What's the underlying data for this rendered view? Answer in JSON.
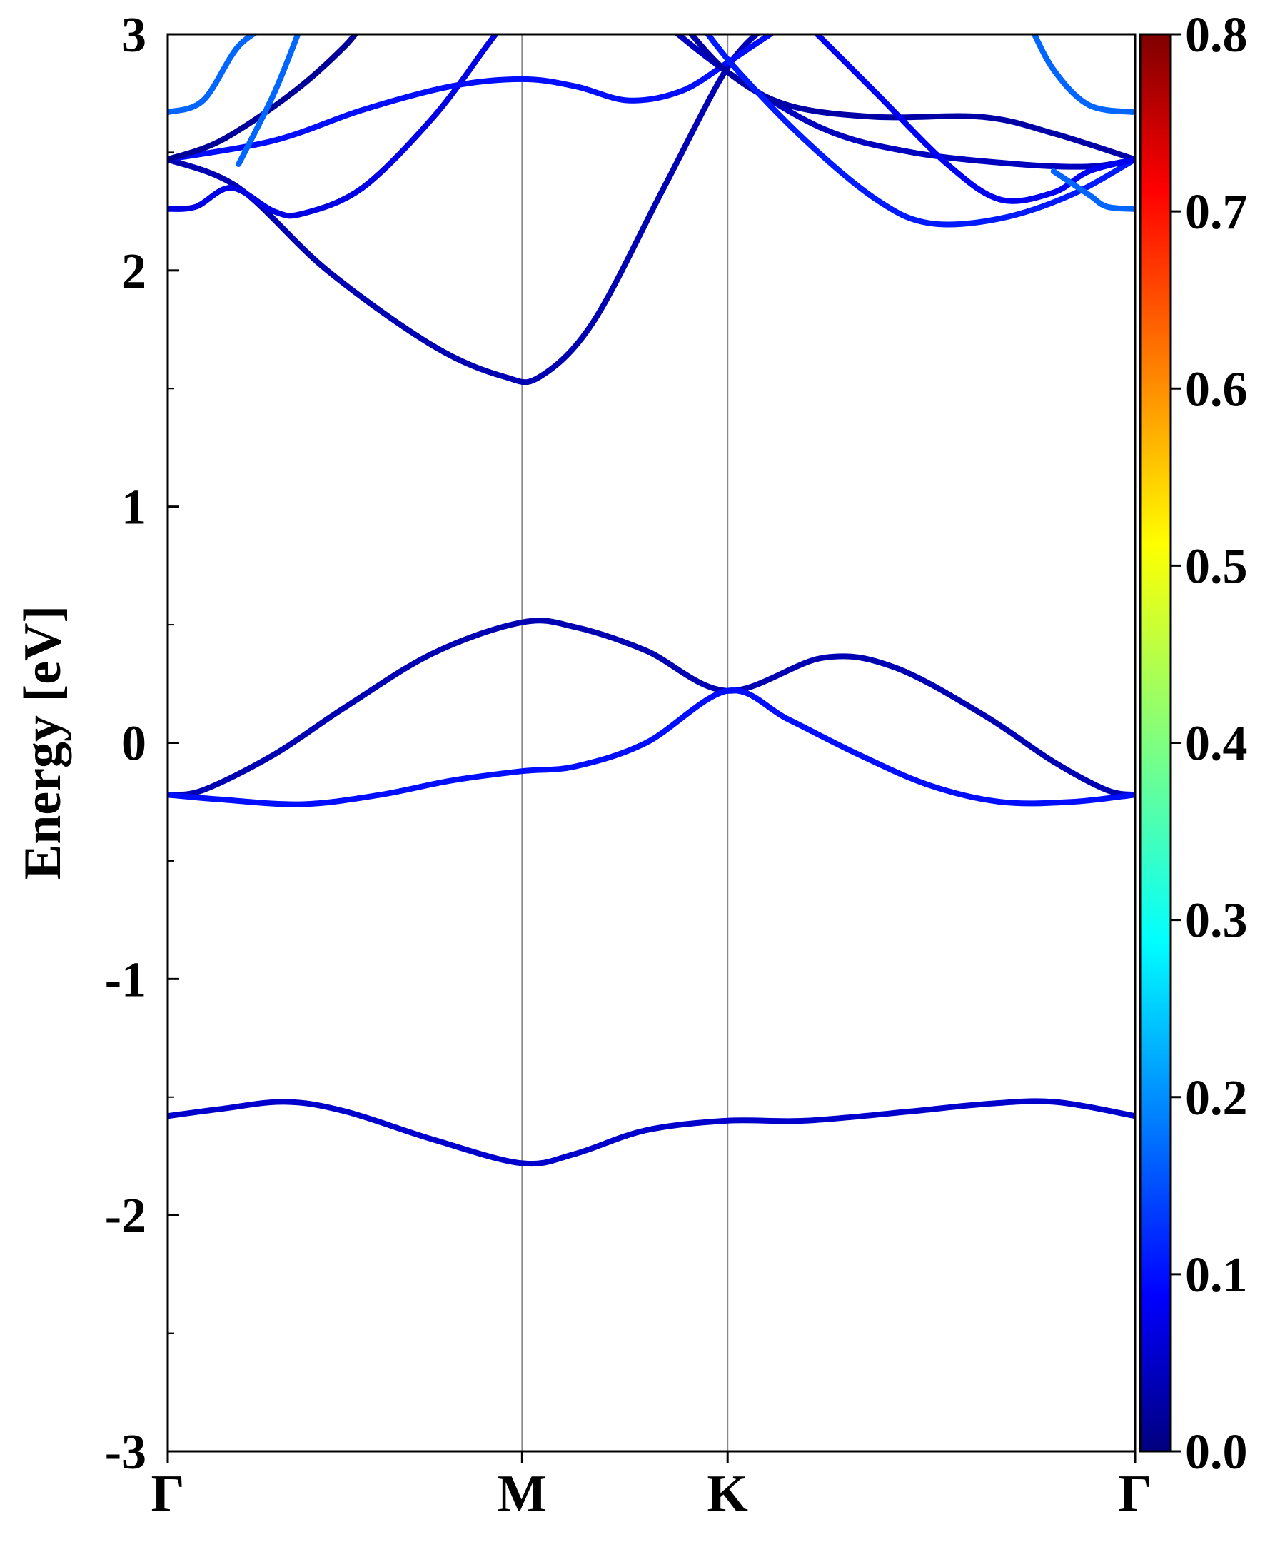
{
  "chart_data": {
    "type": "line",
    "title": "",
    "xlabel": "",
    "ylabel": "Energy [eV]",
    "ylim": [
      -3,
      3
    ],
    "yticks": [
      -3,
      -2,
      -1,
      0,
      1,
      2,
      3
    ],
    "kpath": [
      "Γ",
      "M",
      "K",
      "Γ"
    ],
    "kpath_positions": [
      0,
      1,
      1.58,
      2.73
    ],
    "xlim": [
      0,
      2.73
    ],
    "colorbar": {
      "colormap": "jet",
      "range": [
        0.0,
        0.8
      ],
      "ticks": [
        "0.0",
        "0.1",
        "0.2",
        "0.3",
        "0.4",
        "0.5",
        "0.6",
        "0.7",
        "0.8"
      ]
    },
    "series": [
      {
        "points": [
          [
            0,
            -1.58
          ],
          [
            0.15,
            -1.55
          ],
          [
            0.33,
            -1.52
          ],
          [
            0.5,
            -1.56
          ],
          [
            0.75,
            -1.68
          ],
          [
            1.0,
            -1.78
          ],
          [
            1.15,
            -1.74
          ],
          [
            1.35,
            -1.64
          ],
          [
            1.58,
            -1.6
          ],
          [
            1.8,
            -1.6
          ],
          [
            2.1,
            -1.56
          ],
          [
            2.3,
            -1.53
          ],
          [
            2.5,
            -1.52
          ],
          [
            2.73,
            -1.58
          ]
        ],
        "weight": 0.06
      },
      {
        "points": [
          [
            0,
            -0.22
          ],
          [
            0.1,
            -0.2
          ],
          [
            0.3,
            -0.05
          ],
          [
            0.5,
            0.15
          ],
          [
            0.75,
            0.38
          ],
          [
            1.0,
            0.51
          ],
          [
            1.15,
            0.49
          ],
          [
            1.35,
            0.39
          ],
          [
            1.58,
            0.22
          ],
          [
            1.85,
            0.36
          ],
          [
            2.05,
            0.32
          ],
          [
            2.3,
            0.12
          ],
          [
            2.5,
            -0.08
          ],
          [
            2.65,
            -0.2
          ],
          [
            2.73,
            -0.22
          ]
        ],
        "weight": 0.04
      },
      {
        "points": [
          [
            0,
            -0.22
          ],
          [
            0.15,
            -0.24
          ],
          [
            0.38,
            -0.26
          ],
          [
            0.6,
            -0.22
          ],
          [
            0.8,
            -0.16
          ],
          [
            1.0,
            -0.12
          ],
          [
            1.15,
            -0.1
          ],
          [
            1.35,
            0.0
          ],
          [
            1.58,
            0.22
          ],
          [
            1.75,
            0.1
          ],
          [
            1.95,
            -0.05
          ],
          [
            2.15,
            -0.18
          ],
          [
            2.35,
            -0.25
          ],
          [
            2.55,
            -0.25
          ],
          [
            2.73,
            -0.22
          ]
        ],
        "weight": 0.11
      },
      {
        "points": [
          [
            0,
            2.47
          ],
          [
            0.2,
            2.35
          ],
          [
            0.45,
            2.0
          ],
          [
            0.75,
            1.68
          ],
          [
            0.95,
            1.55
          ],
          [
            1.05,
            1.55
          ],
          [
            1.2,
            1.78
          ],
          [
            1.4,
            2.35
          ],
          [
            1.58,
            2.86
          ],
          [
            1.7,
            3.05
          ]
        ],
        "weight": 0.04
      },
      {
        "points": [
          [
            0,
            2.26
          ],
          [
            0.08,
            2.27
          ],
          [
            0.18,
            2.35
          ],
          [
            0.3,
            2.25
          ],
          [
            0.38,
            2.24
          ],
          [
            0.55,
            2.35
          ],
          [
            0.75,
            2.65
          ],
          [
            0.9,
            2.95
          ],
          [
            0.95,
            3.05
          ]
        ],
        "weight": 0.08
      },
      {
        "points": [
          [
            0,
            2.47
          ],
          [
            0.3,
            2.55
          ],
          [
            0.55,
            2.68
          ],
          [
            0.8,
            2.78
          ],
          [
            1.0,
            2.81
          ],
          [
            1.15,
            2.78
          ],
          [
            1.3,
            2.72
          ],
          [
            1.45,
            2.76
          ],
          [
            1.58,
            2.88
          ],
          [
            1.65,
            2.95
          ],
          [
            1.75,
            3.05
          ]
        ],
        "weight": 0.11
      },
      {
        "points": [
          [
            0,
            2.47
          ],
          [
            0.15,
            2.55
          ],
          [
            0.35,
            2.75
          ],
          [
            0.5,
            2.95
          ],
          [
            0.55,
            3.05
          ]
        ],
        "weight": 0.02
      },
      {
        "points": [
          [
            0,
            2.67
          ],
          [
            0.1,
            2.72
          ],
          [
            0.2,
            2.95
          ],
          [
            0.3,
            3.05
          ]
        ],
        "weight": 0.18
      },
      {
        "points": [
          [
            0.2,
            2.45
          ],
          [
            0.3,
            2.75
          ],
          [
            0.38,
            3.05
          ]
        ],
        "weight": 0.18
      },
      {
        "points": [
          [
            1.4,
            3.05
          ],
          [
            1.58,
            2.84
          ],
          [
            1.85,
            2.6
          ],
          [
            2.1,
            2.5
          ],
          [
            2.4,
            2.45
          ],
          [
            2.6,
            2.44
          ],
          [
            2.73,
            2.47
          ]
        ],
        "weight": 0.05
      },
      {
        "points": [
          [
            1.45,
            3.05
          ],
          [
            1.58,
            2.84
          ],
          [
            1.75,
            2.7
          ],
          [
            2.0,
            2.65
          ],
          [
            2.3,
            2.65
          ],
          [
            2.5,
            2.58
          ],
          [
            2.73,
            2.47
          ]
        ],
        "weight": 0.03
      },
      {
        "points": [
          [
            1.5,
            3.05
          ],
          [
            1.6,
            2.86
          ],
          [
            1.8,
            2.55
          ],
          [
            2.0,
            2.3
          ],
          [
            2.15,
            2.2
          ],
          [
            2.35,
            2.22
          ],
          [
            2.55,
            2.32
          ],
          [
            2.73,
            2.47
          ]
        ],
        "weight": 0.12
      },
      {
        "points": [
          [
            1.8,
            3.05
          ],
          [
            2.0,
            2.75
          ],
          [
            2.2,
            2.45
          ],
          [
            2.35,
            2.3
          ],
          [
            2.5,
            2.33
          ],
          [
            2.6,
            2.42
          ],
          [
            2.73,
            2.47
          ]
        ],
        "weight": 0.09
      },
      {
        "points": [
          [
            2.43,
            3.05
          ],
          [
            2.5,
            2.85
          ],
          [
            2.6,
            2.7
          ],
          [
            2.73,
            2.67
          ]
        ],
        "weight": 0.18
      },
      {
        "points": [
          [
            2.5,
            2.42
          ],
          [
            2.6,
            2.32
          ],
          [
            2.65,
            2.27
          ],
          [
            2.73,
            2.26
          ]
        ],
        "weight": 0.18
      }
    ]
  }
}
